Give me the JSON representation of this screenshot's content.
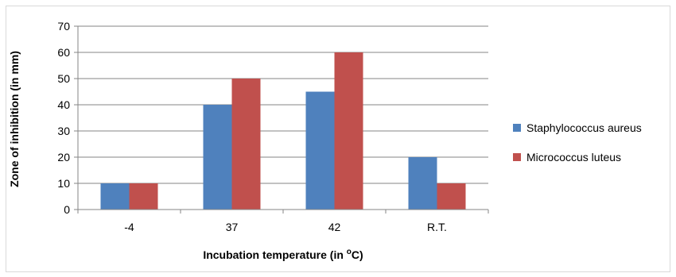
{
  "chart_data": {
    "type": "bar",
    "title": "",
    "xlabel": "Incubation temperature (in ",
    "xlabel_sup": "o",
    "xlabel_suffix": "C)",
    "ylabel": "Zone of inhibition (in mm)",
    "categories": [
      "-4",
      "37",
      "42",
      "R.T."
    ],
    "series": [
      {
        "name": "Staphylococcus aureus",
        "values": [
          10,
          40,
          45,
          20
        ],
        "color": "#4f81bd"
      },
      {
        "name": "Micrococcus luteus",
        "values": [
          10,
          50,
          60,
          10
        ],
        "color": "#c0504d"
      }
    ],
    "ylim": [
      0,
      70
    ],
    "yticks": [
      0,
      10,
      20,
      30,
      40,
      50,
      60,
      70
    ],
    "grid": true,
    "legend": "right"
  }
}
